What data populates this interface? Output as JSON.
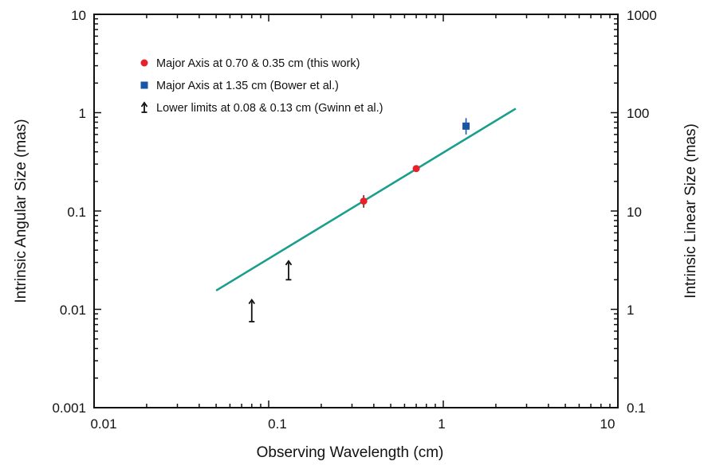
{
  "chart_data": {
    "type": "scatter",
    "x_scale": "log",
    "y_scale": "log",
    "xlim": [
      0.01,
      10
    ],
    "ylim": [
      0.001,
      10
    ],
    "y2lim": [
      0.1,
      1000
    ],
    "xlabel": "Observing Wavelength (cm)",
    "ylabel": "Intrinsic Angular Size (mas)",
    "y2label": "Intrinsic Linear Size (mas)",
    "x_ticks": [
      "0.01",
      "0.1",
      "1",
      "10"
    ],
    "y_ticks": [
      "10",
      "1",
      "0.1",
      "0.01",
      "0.001"
    ],
    "y2_ticks": [
      "1000",
      "100",
      "10",
      "1",
      "0.1"
    ],
    "grid": false,
    "legend_position": "top-left",
    "series": [
      {
        "name": "Major Axis at 0.70 & 0.35 cm (this work)",
        "marker": "circle",
        "color": "#e8202a",
        "points": [
          {
            "x": 0.35,
            "y": 0.126,
            "err_low": 0.108,
            "err_high": 0.145
          },
          {
            "x": 0.7,
            "y": 0.27,
            "err_low": 0.262,
            "err_high": 0.28
          }
        ]
      },
      {
        "name": "Major Axis at 1.35 cm (Bower et al.)",
        "marker": "square",
        "color": "#1a56a6",
        "points": [
          {
            "x": 1.35,
            "y": 0.73,
            "err_low": 0.6,
            "err_high": 0.88
          }
        ]
      },
      {
        "name": "Lower limits at 0.08 & 0.13 cm (Gwinn et al.)",
        "marker": "lower-limit-arrow",
        "color": "#111111",
        "points": [
          {
            "x": 0.08,
            "y_low": 0.0075,
            "y_high": 0.0125
          },
          {
            "x": 0.13,
            "y_low": 0.02,
            "y_high": 0.031
          }
        ]
      }
    ],
    "fit_line": {
      "color": "#179e8c",
      "x": [
        0.05,
        2.6
      ],
      "y": [
        0.0155,
        1.1
      ]
    }
  }
}
